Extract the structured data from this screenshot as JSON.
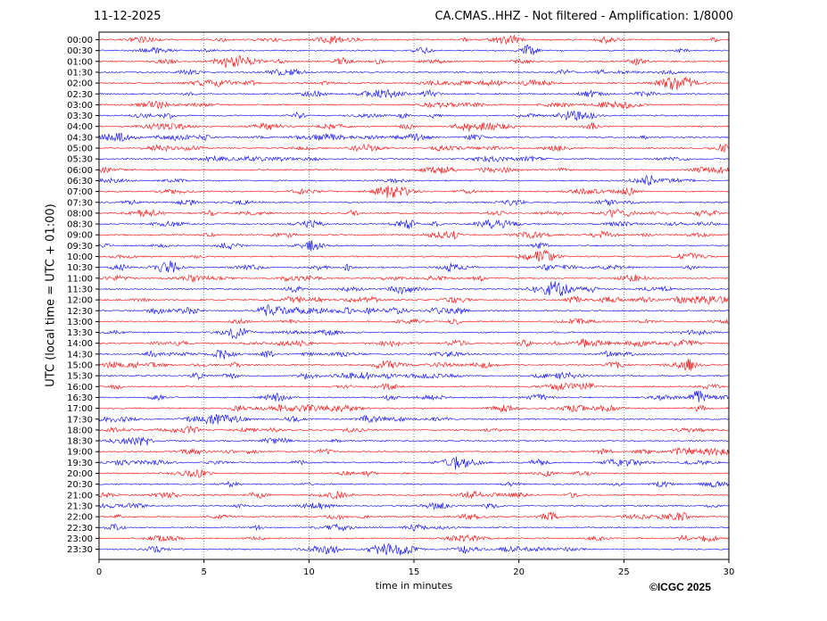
{
  "header": {
    "date": "11-12-2025",
    "title": "CA.CMAS..HHZ - Not filtered - Amplification: 1/8000"
  },
  "copyright": "©ICGC 2025",
  "chart_data": {
    "type": "line",
    "title": "CA.CMAS..HHZ - Not filtered - Amplification: 1/8000",
    "xlabel": "time in minutes",
    "ylabel": "UTC (local time = UTC + 01:00)",
    "xlim": [
      0,
      30
    ],
    "x_ticks": [
      0,
      5,
      10,
      15,
      20,
      25,
      30
    ],
    "y_ticks": [
      "00:00",
      "00:30",
      "01:00",
      "01:30",
      "02:00",
      "02:30",
      "03:00",
      "03:30",
      "04:00",
      "04:30",
      "05:00",
      "05:30",
      "06:00",
      "06:30",
      "07:00",
      "07:30",
      "08:00",
      "08:30",
      "09:00",
      "09:30",
      "10:00",
      "10:30",
      "11:00",
      "11:30",
      "12:00",
      "12:30",
      "13:00",
      "13:30",
      "14:00",
      "14:30",
      "15:00",
      "15:30",
      "16:00",
      "16:30",
      "17:00",
      "17:30",
      "18:00",
      "18:30",
      "19:00",
      "19:30",
      "20:00",
      "20:30",
      "21:00",
      "21:30",
      "22:00",
      "22:30",
      "23:00",
      "23:30"
    ],
    "grid": "vertical dotted",
    "series_colors": [
      "#ff0000",
      "#0000ff"
    ],
    "trace_color_pattern": "alternating red/blue per 30-minute row, starting red"
  }
}
